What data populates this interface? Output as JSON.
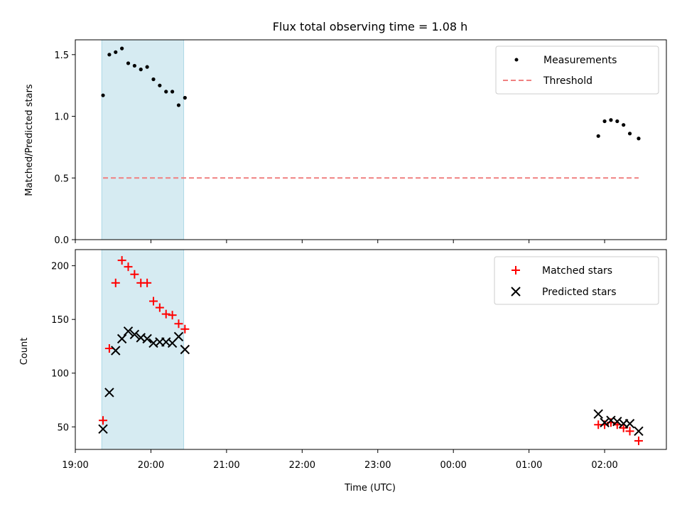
{
  "chart_data": {
    "title": "Flux total observing time = 1.08 h",
    "xlabel": "Time (UTC)",
    "x_tick_labels": [
      "19:00",
      "20:00",
      "21:00",
      "22:00",
      "23:00",
      "00:00",
      "01:00",
      "02:00"
    ],
    "xlim": [
      "19:00",
      "02:49"
    ],
    "shaded_region": {
      "from": "19:21",
      "to": "20:26",
      "color": "#add8e6"
    },
    "panels": [
      {
        "type": "scatter",
        "ylabel": "Matched/Predicted stars",
        "ylim": [
          0,
          1.62
        ],
        "y_ticks": [
          0.0,
          0.5,
          1.0,
          1.5
        ],
        "y_tick_labels": [
          "0.0",
          "0.5",
          "1.0",
          "1.5"
        ],
        "legend_position": "top-right",
        "series": [
          {
            "name": "Measurements",
            "marker": "dot",
            "color": "#000000",
            "x": [
              "19:22",
              "19:27",
              "19:32",
              "19:37",
              "19:42",
              "19:47",
              "19:52",
              "19:57",
              "20:02",
              "20:07",
              "20:12",
              "20:17",
              "20:22",
              "20:27",
              "01:55",
              "02:00",
              "02:05",
              "02:10",
              "02:15",
              "02:20",
              "02:27"
            ],
            "y": [
              1.17,
              1.5,
              1.52,
              1.55,
              1.43,
              1.41,
              1.38,
              1.4,
              1.3,
              1.25,
              1.2,
              1.2,
              1.09,
              1.15,
              0.84,
              0.96,
              0.97,
              0.96,
              0.93,
              0.86,
              0.82
            ]
          },
          {
            "name": "Threshold",
            "line": "dashed",
            "color": "#f08080",
            "x": [
              "19:22",
              "02:27"
            ],
            "y": [
              0.5,
              0.5
            ]
          }
        ]
      },
      {
        "type": "scatter",
        "ylabel": "Count",
        "ylim": [
          29,
          215
        ],
        "y_ticks": [
          50,
          100,
          150,
          200
        ],
        "y_tick_labels": [
          "50",
          "100",
          "150",
          "200"
        ],
        "legend_position": "top-right",
        "series": [
          {
            "name": "Matched stars",
            "marker": "plus",
            "color": "#ff0000",
            "x": [
              "19:22",
              "19:27",
              "19:32",
              "19:37",
              "19:42",
              "19:47",
              "19:52",
              "19:57",
              "20:02",
              "20:07",
              "20:12",
              "20:17",
              "20:22",
              "20:27",
              "01:55",
              "02:00",
              "02:05",
              "02:10",
              "02:15",
              "02:20",
              "02:27"
            ],
            "y": [
              56,
              123,
              184,
              205,
              199,
              192,
              184,
              184,
              167,
              161,
              155,
              154,
              146,
              141,
              52,
              52,
              54,
              52,
              49,
              46,
              37
            ]
          },
          {
            "name": "Predicted stars",
            "marker": "x",
            "color": "#000000",
            "x": [
              "19:22",
              "19:27",
              "19:32",
              "19:37",
              "19:42",
              "19:47",
              "19:52",
              "19:57",
              "20:02",
              "20:07",
              "20:12",
              "20:17",
              "20:22",
              "20:27",
              "01:55",
              "02:00",
              "02:05",
              "02:10",
              "02:15",
              "02:20",
              "02:27"
            ],
            "y": [
              48,
              82,
              121,
              132,
              139,
              136,
              133,
              132,
              128,
              129,
              129,
              128,
              134,
              122,
              62,
              54,
              56,
              55,
              53,
              53,
              46
            ]
          }
        ]
      }
    ]
  }
}
